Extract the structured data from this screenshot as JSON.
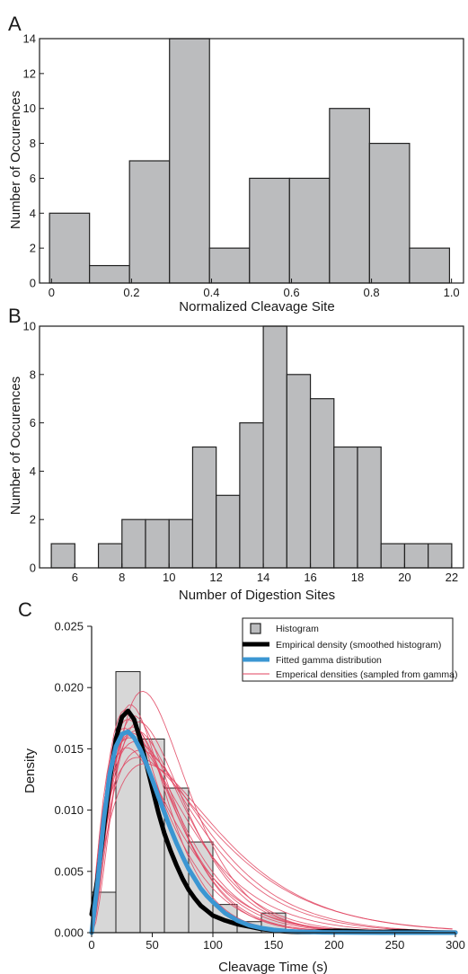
{
  "colors": {
    "hist_fill": "#bbbcbe",
    "hist_fill_light": "#d7d7d7",
    "hist_edge": "#222222",
    "empirical": "#000000",
    "gamma": "#3b96d2",
    "samples": "#e1435f"
  },
  "chart_data": [
    {
      "panel": "A",
      "type": "bar",
      "title": "",
      "xlabel": "Normalized Cleavage Site",
      "ylabel": "Number of Occurences",
      "xlim": [
        -0.03,
        1.03
      ],
      "ylim": [
        0,
        14
      ],
      "xticks": [
        0,
        0.2,
        0.4,
        0.6,
        0.8,
        1.0
      ],
      "xtick_labels": [
        "0",
        "0.2",
        "0.4",
        "0.6",
        "0.8",
        "1.0"
      ],
      "yticks": [
        0,
        2,
        4,
        6,
        8,
        10,
        12,
        14
      ],
      "bin_start": -0.005,
      "bin_width": 0.1,
      "values": [
        4,
        1,
        7,
        14,
        2,
        6,
        6,
        10,
        8,
        2
      ]
    },
    {
      "panel": "B",
      "type": "bar",
      "title": "",
      "xlabel": "Number of Digestion Sites",
      "ylabel": "Number of Occurences",
      "xlim": [
        4.5,
        22.5
      ],
      "ylim": [
        0,
        10
      ],
      "xticks": [
        6,
        8,
        10,
        12,
        14,
        16,
        18,
        20,
        22
      ],
      "yticks": [
        0,
        2,
        4,
        6,
        8,
        10
      ],
      "bin_start": 5,
      "bin_width": 1,
      "values": [
        1,
        0,
        1,
        2,
        2,
        2,
        5,
        3,
        6,
        10,
        8,
        7,
        5,
        5,
        1,
        1,
        1
      ]
    },
    {
      "panel": "C",
      "type": "bar",
      "title": "",
      "xlabel": "Cleavage Time (s)",
      "ylabel": "Density",
      "xlim": [
        0,
        300
      ],
      "ylim": [
        0,
        0.025
      ],
      "xticks": [
        0,
        50,
        100,
        150,
        200,
        250,
        300
      ],
      "yticks": [
        0,
        0.005,
        0.01,
        0.015,
        0.02,
        0.025
      ],
      "ytick_labels": [
        "0.000",
        "0.005",
        "0.010",
        "0.015",
        "0.020",
        "0.025"
      ],
      "bin_start": 0,
      "bin_width": 20,
      "values": [
        0.0033,
        0.0213,
        0.0158,
        0.0118,
        0.0074,
        0.0023,
        0.0009,
        0.0016
      ],
      "legend_position": "top-right",
      "legend": [
        {
          "label": "Histogram",
          "kind": "box"
        },
        {
          "label": "Empirical density (smoothed histogram)",
          "kind": "empirical"
        },
        {
          "label": "Fitted gamma distribution",
          "kind": "gamma"
        },
        {
          "label": "Emperical densities (sampled from gamma)",
          "kind": "samples"
        }
      ],
      "series": [
        {
          "name": "Empirical density (smoothed histogram)",
          "x": [
            0,
            5,
            10,
            15,
            20,
            25,
            30,
            35,
            40,
            45,
            50,
            55,
            60,
            65,
            70,
            75,
            80,
            85,
            90,
            95,
            100,
            110,
            120,
            130,
            140,
            150,
            160,
            170,
            180,
            190,
            200,
            210,
            220,
            230,
            240,
            250,
            260,
            270,
            280,
            290,
            300
          ],
          "y": [
            0.0015,
            0.0045,
            0.0085,
            0.0125,
            0.0158,
            0.0176,
            0.0181,
            0.0174,
            0.0158,
            0.0138,
            0.0118,
            0.0098,
            0.0081,
            0.0067,
            0.0055,
            0.0044,
            0.0035,
            0.0028,
            0.0022,
            0.0018,
            0.0014,
            0.001,
            0.0007,
            0.0005,
            0.0003,
            0.0002,
            0.0001,
            5e-05,
            5e-05,
            0.0001,
            0.00015,
            0.00015,
            0.0001,
            5e-05,
            5e-05,
            0.0001,
            0.0001,
            5e-05,
            3e-05,
            2e-05,
            1e-05
          ]
        },
        {
          "name": "Fitted gamma distribution",
          "x": [
            0,
            5,
            10,
            15,
            20,
            25,
            30,
            35,
            40,
            45,
            50,
            55,
            60,
            65,
            70,
            75,
            80,
            85,
            90,
            95,
            100,
            110,
            120,
            130,
            140,
            150,
            160,
            170,
            180,
            190,
            200,
            220,
            240,
            260,
            280,
            300
          ],
          "y": [
            0.0,
            0.0042,
            0.0092,
            0.013,
            0.0152,
            0.0162,
            0.0164,
            0.0159,
            0.015,
            0.0138,
            0.0125,
            0.0111,
            0.0098,
            0.0085,
            0.0073,
            0.0062,
            0.0052,
            0.0044,
            0.0036,
            0.003,
            0.0025,
            0.0016,
            0.001,
            0.0006,
            0.00038,
            0.00023,
            0.00014,
            8e-05,
            5e-05,
            3e-05,
            2e-05,
            1e-05,
            0.0,
            0.0,
            0.0,
            0.0
          ]
        }
      ],
      "sample_curves": [
        {
          "peak_x": 30,
          "peak_y": 0.0174,
          "k": 2.2
        },
        {
          "peak_x": 33,
          "peak_y": 0.0163,
          "k": 2.3
        },
        {
          "peak_x": 36,
          "peak_y": 0.0156,
          "k": 2.0
        },
        {
          "peak_x": 28,
          "peak_y": 0.0182,
          "k": 2.5
        },
        {
          "peak_x": 40,
          "peak_y": 0.0149,
          "k": 2.1
        },
        {
          "peak_x": 34,
          "peak_y": 0.0168,
          "k": 2.6
        },
        {
          "peak_x": 42,
          "peak_y": 0.0197,
          "k": 3.0
        },
        {
          "peak_x": 31,
          "peak_y": 0.0159,
          "k": 1.9
        },
        {
          "peak_x": 38,
          "peak_y": 0.0143,
          "k": 1.8
        },
        {
          "peak_x": 35,
          "peak_y": 0.0177,
          "k": 2.8
        },
        {
          "peak_x": 29,
          "peak_y": 0.0151,
          "k": 2.0
        },
        {
          "peak_x": 44,
          "peak_y": 0.0138,
          "k": 2.0
        },
        {
          "peak_x": 32,
          "peak_y": 0.0186,
          "k": 2.9
        },
        {
          "peak_x": 37,
          "peak_y": 0.0165,
          "k": 2.4
        },
        {
          "peak_x": 27,
          "peak_y": 0.0167,
          "k": 2.1
        },
        {
          "peak_x": 39,
          "peak_y": 0.0172,
          "k": 2.7
        }
      ]
    }
  ]
}
